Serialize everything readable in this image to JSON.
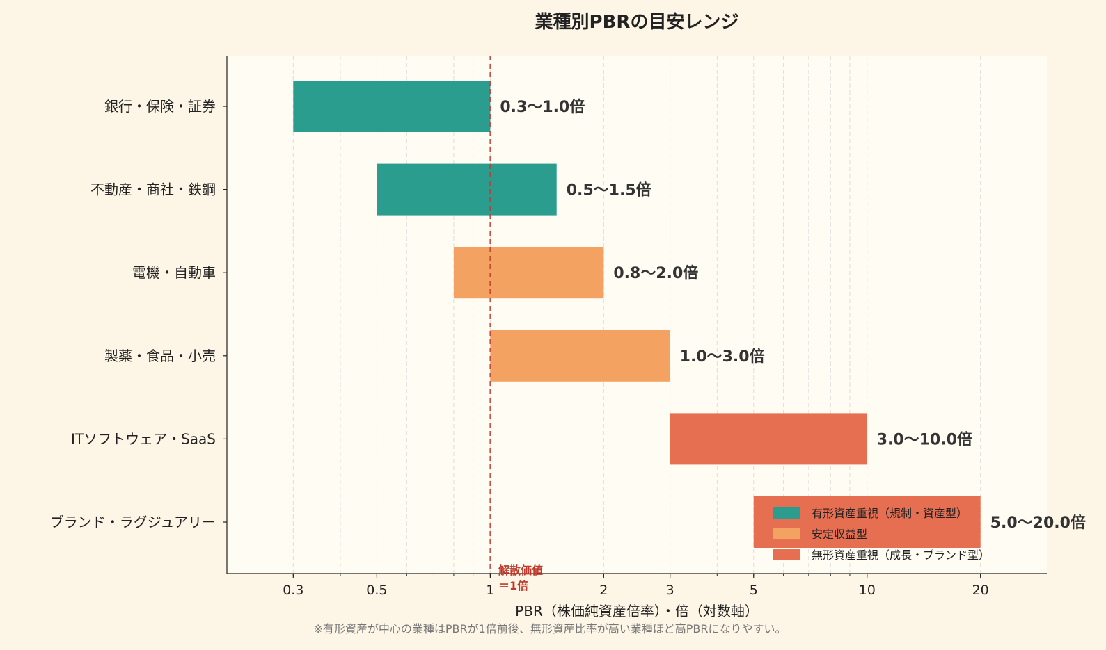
{
  "chart_data": {
    "type": "bar",
    "orientation": "horizontal-range",
    "title": "業種別PBRの目安レンジ",
    "xlabel": "PBR（株価純資産倍率）・倍（対数軸）",
    "x_scale": "log",
    "xlim": [
      0.2,
      30
    ],
    "x_ticks": [
      0.3,
      0.5,
      1,
      2,
      3,
      5,
      10,
      20
    ],
    "x_tick_labels": [
      "0.3",
      "0.5",
      "1",
      "2",
      "3",
      "5",
      "10",
      "20"
    ],
    "grid": "vertical dashed",
    "legend_position": "bottom-right",
    "categories": [
      "銀行・保険・証券",
      "不動産・商社・鉄鋼",
      "電機・自動車",
      "製薬・食品・小売",
      "ITソフトウェア・SaaS",
      "ブランド・ラグジュアリー"
    ],
    "bars": [
      {
        "low": 0.3,
        "high": 1.0,
        "label": "0.3〜1.0倍",
        "group": 0
      },
      {
        "low": 0.5,
        "high": 1.5,
        "label": "0.5〜1.5倍",
        "group": 0
      },
      {
        "low": 0.8,
        "high": 2.0,
        "label": "0.8〜2.0倍",
        "group": 1
      },
      {
        "low": 1.0,
        "high": 3.0,
        "label": "1.0〜3.0倍",
        "group": 1
      },
      {
        "low": 3.0,
        "high": 10.0,
        "label": "3.0〜10.0倍",
        "group": 2
      },
      {
        "low": 5.0,
        "high": 20.0,
        "label": "5.0〜20.0倍",
        "group": 2
      }
    ],
    "series": [
      {
        "name": "有形資産重視（規制・資産型）",
        "color": "#2a9d8f"
      },
      {
        "name": "安定収益型",
        "color": "#f4a261"
      },
      {
        "name": "無形資産重視（成長・ブランド型）",
        "color": "#e76f51"
      }
    ],
    "reference_line": {
      "x": 1,
      "label_lines": [
        "解散価値",
        "＝1倍"
      ],
      "color": "#c0392b"
    },
    "footnote": "※有形資産が中心の業種はPBRが1倍前後、無形資産比率が高い業種ほど高PBRになりやすい。"
  }
}
